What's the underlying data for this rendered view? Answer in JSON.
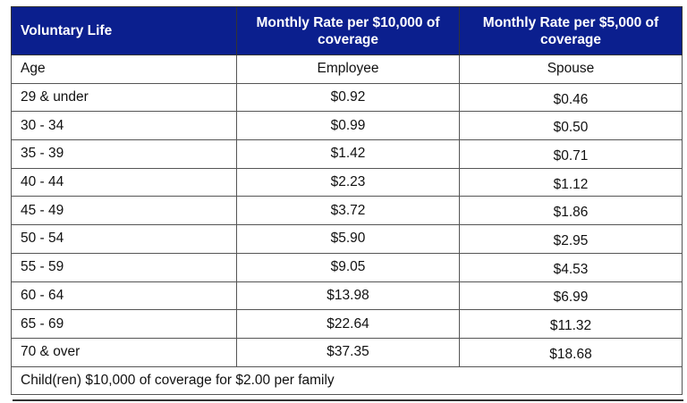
{
  "table": {
    "headers": [
      "Voluntary Life",
      "Monthly Rate per $10,000 of coverage",
      "Monthly Rate per $5,000 of coverage"
    ],
    "subheaders": [
      "Age",
      "Employee",
      "Spouse"
    ],
    "rows": [
      [
        "29 & under",
        "$0.92",
        "$0.46"
      ],
      [
        "30 - 34",
        "$0.99",
        "$0.50"
      ],
      [
        "35 - 39",
        "$1.42",
        "$0.71"
      ],
      [
        "40 - 44",
        "$2.23",
        "$1.12"
      ],
      [
        "45 - 49",
        "$3.72",
        "$1.86"
      ],
      [
        "50 - 54",
        "$5.90",
        "$2.95"
      ],
      [
        "55 - 59",
        "$9.05",
        "$4.53"
      ],
      [
        "60 - 64",
        "$13.98",
        "$6.99"
      ],
      [
        "65 - 69",
        "$22.64",
        "$11.32"
      ],
      [
        "70 & over",
        "$37.35",
        "$18.68"
      ]
    ],
    "footer": "Child(ren) $10,000 of coverage for $2.00 per family"
  },
  "colors": {
    "header_bg": "#0b1f8e",
    "header_text": "#ffffff"
  }
}
